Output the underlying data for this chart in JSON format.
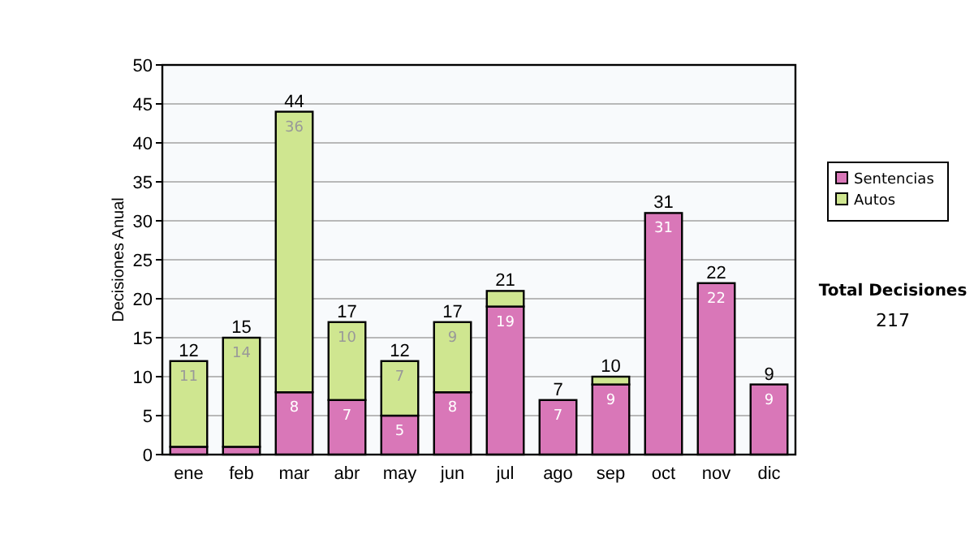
{
  "chart_data": {
    "type": "bar",
    "stacked": true,
    "ylabel": "Decisiones Anual",
    "categories": [
      "ene",
      "feb",
      "mar",
      "abr",
      "may",
      "jun",
      "jul",
      "ago",
      "sep",
      "oct",
      "nov",
      "dic"
    ],
    "series": [
      {
        "name": "Sentencias",
        "color": "#d977b8",
        "values": [
          1,
          1,
          8,
          7,
          5,
          8,
          19,
          7,
          9,
          31,
          22,
          9
        ],
        "value_labels": [
          null,
          null,
          "8",
          "7",
          "5",
          "8",
          "19",
          "7",
          "9",
          "31",
          "22",
          "9"
        ]
      },
      {
        "name": "Autos",
        "color": "#cfe690",
        "values": [
          11,
          14,
          36,
          10,
          7,
          9,
          2,
          0,
          1,
          0,
          0,
          0
        ],
        "value_labels": [
          "11",
          "14",
          "36",
          "10",
          "7",
          "9",
          null,
          null,
          null,
          null,
          null,
          null
        ]
      }
    ],
    "totals": [
      "12",
      "15",
      "44",
      "17",
      "12",
      "17",
      "21",
      "7",
      "10",
      "31",
      "22",
      "9"
    ],
    "ylim": [
      0,
      50
    ],
    "yticks": [
      0,
      5,
      10,
      15,
      20,
      25,
      30,
      35,
      40,
      45,
      50
    ],
    "grid": "y",
    "legend": "right",
    "annotations": [
      "Total Decisiones",
      "217"
    ]
  }
}
